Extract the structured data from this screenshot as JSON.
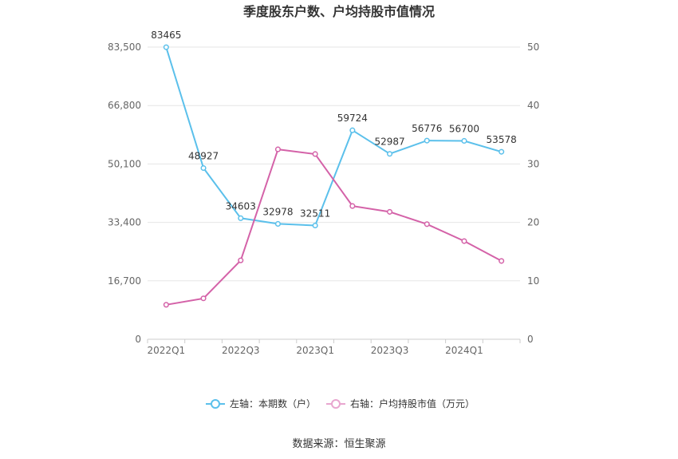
{
  "chart_data": {
    "type": "line",
    "title": "季度股东户数、户均持股市值情况",
    "x": [
      "2022Q1",
      "2022Q2",
      "2022Q3",
      "2022Q4",
      "2023Q1",
      "2023Q2",
      "2023Q3",
      "2023Q4",
      "2024Q1",
      "2024Q2"
    ],
    "x_tick_labels": [
      "2022Q1",
      "2022Q3",
      "2023Q1",
      "2023Q3",
      "2024Q1"
    ],
    "y_left": {
      "ticks": [
        0,
        16700,
        33400,
        50100,
        66800,
        83500
      ],
      "tick_labels": [
        "0",
        "16,700",
        "33,400",
        "50,100",
        "66,800",
        "83,500"
      ],
      "ylim": [
        0,
        83500
      ]
    },
    "y_right": {
      "ticks": [
        0,
        10,
        20,
        30,
        40,
        50
      ],
      "tick_labels": [
        "0",
        "10",
        "20",
        "30",
        "40",
        "50"
      ],
      "ylim": [
        0,
        50
      ]
    },
    "series": [
      {
        "name": "左轴：本期数（户）",
        "axis": "left",
        "color": "#5bc0eb",
        "values": [
          83465,
          48927,
          34603,
          32978,
          32511,
          59724,
          52987,
          56776,
          56700,
          53578
        ],
        "labels": [
          "83465",
          "48927",
          "34603",
          "32978",
          "32511",
          "59724",
          "52987",
          "56776",
          "56700",
          "53578"
        ]
      },
      {
        "name": "右轴：户均持股市值（万元）",
        "axis": "right",
        "color": "#d462a8",
        "values": [
          5.9,
          7.0,
          13.5,
          32.5,
          31.7,
          22.8,
          21.8,
          19.7,
          16.8,
          13.4
        ]
      }
    ],
    "grid": true,
    "legend_position": "bottom-center"
  },
  "source_text": "数据来源：恒生聚源"
}
